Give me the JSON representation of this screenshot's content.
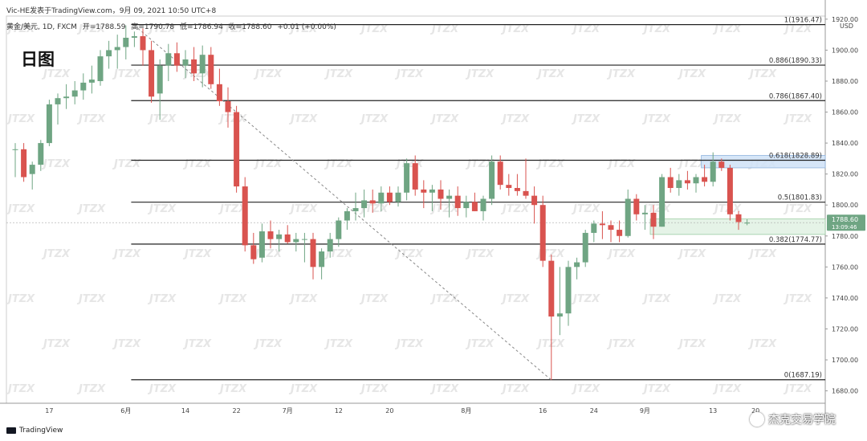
{
  "header": {
    "publisher_line": "Vic-HE发表于TradingView.com，9月 09, 2021 10:50 UTC+8",
    "symbol": "黄金/美元, 1D, FXCM",
    "open": "开=1788.59",
    "high": "高=1790.78",
    "low": "低=1786.94",
    "close": "收=1788.60",
    "change": "+0.01 (+0.00%)",
    "timeframe_title": "日图"
  },
  "footer": {
    "tradingview": "TradingView",
    "credit": "杰克交易学院",
    "watermark": "JTZX"
  },
  "colors": {
    "up": "#6fa583",
    "down": "#d9534f",
    "fib_line": "#222222",
    "trend_line": "#888888",
    "zone_blue": "#cfe2f7",
    "zone_green": "#e1f1e3",
    "price_badge": "#6fa583"
  },
  "chart_data": {
    "type": "candlestick",
    "ylabel_unit": "USD",
    "ylim": [
      1672,
      1922
    ],
    "y_ticks": [
      "1920.00",
      "1900.00",
      "1880.00",
      "1860.00",
      "1840.00",
      "1820.00",
      "1800.00",
      "1780.00",
      "1760.00",
      "1740.00",
      "1720.00",
      "1700.00",
      "1680.00"
    ],
    "y_tick_values": [
      1920,
      1900,
      1880,
      1860,
      1840,
      1820,
      1800,
      1780,
      1760,
      1740,
      1720,
      1700,
      1680
    ],
    "x_ticks": [
      {
        "label": "17",
        "index": 4
      },
      {
        "label": "6月",
        "index": 13
      },
      {
        "label": "14",
        "index": 20
      },
      {
        "label": "22",
        "index": 26
      },
      {
        "label": "7月",
        "index": 32
      },
      {
        "label": "12",
        "index": 38
      },
      {
        "label": "20",
        "index": 44
      },
      {
        "label": "8月",
        "index": 53
      },
      {
        "label": "16",
        "index": 62
      },
      {
        "label": "24",
        "index": 68
      },
      {
        "label": "9月",
        "index": 74
      },
      {
        "label": "13",
        "index": 82
      },
      {
        "label": "20",
        "index": 87
      }
    ],
    "candles": [
      {
        "o": 1836,
        "h": 1840,
        "l": 1818,
        "c": 1836
      },
      {
        "o": 1836,
        "h": 1840,
        "l": 1815,
        "c": 1818
      },
      {
        "o": 1820,
        "h": 1828,
        "l": 1810,
        "c": 1826
      },
      {
        "o": 1826,
        "h": 1842,
        "l": 1822,
        "c": 1840
      },
      {
        "o": 1840,
        "h": 1868,
        "l": 1838,
        "c": 1865
      },
      {
        "o": 1865,
        "h": 1872,
        "l": 1852,
        "c": 1869
      },
      {
        "o": 1869,
        "h": 1878,
        "l": 1862,
        "c": 1870
      },
      {
        "o": 1870,
        "h": 1880,
        "l": 1865,
        "c": 1874
      },
      {
        "o": 1874,
        "h": 1885,
        "l": 1868,
        "c": 1879
      },
      {
        "o": 1879,
        "h": 1890,
        "l": 1872,
        "c": 1881
      },
      {
        "o": 1880,
        "h": 1900,
        "l": 1877,
        "c": 1896
      },
      {
        "o": 1896,
        "h": 1906,
        "l": 1888,
        "c": 1900
      },
      {
        "o": 1900,
        "h": 1910,
        "l": 1888,
        "c": 1902
      },
      {
        "o": 1902,
        "h": 1916,
        "l": 1894,
        "c": 1908
      },
      {
        "o": 1908,
        "h": 1912,
        "l": 1902,
        "c": 1909
      },
      {
        "o": 1909,
        "h": 1914,
        "l": 1890,
        "c": 1900
      },
      {
        "o": 1900,
        "h": 1906,
        "l": 1866,
        "c": 1870
      },
      {
        "o": 1872,
        "h": 1894,
        "l": 1855,
        "c": 1890
      },
      {
        "o": 1890,
        "h": 1904,
        "l": 1880,
        "c": 1898
      },
      {
        "o": 1898,
        "h": 1905,
        "l": 1886,
        "c": 1890
      },
      {
        "o": 1890,
        "h": 1900,
        "l": 1882,
        "c": 1894
      },
      {
        "o": 1894,
        "h": 1902,
        "l": 1880,
        "c": 1885
      },
      {
        "o": 1885,
        "h": 1903,
        "l": 1876,
        "c": 1897
      },
      {
        "o": 1897,
        "h": 1902,
        "l": 1875,
        "c": 1878
      },
      {
        "o": 1878,
        "h": 1888,
        "l": 1864,
        "c": 1867
      },
      {
        "o": 1867,
        "h": 1876,
        "l": 1850,
        "c": 1860
      },
      {
        "o": 1860,
        "h": 1864,
        "l": 1808,
        "c": 1812
      },
      {
        "o": 1812,
        "h": 1818,
        "l": 1770,
        "c": 1774
      },
      {
        "o": 1774,
        "h": 1782,
        "l": 1762,
        "c": 1765
      },
      {
        "o": 1766,
        "h": 1788,
        "l": 1763,
        "c": 1783
      },
      {
        "o": 1783,
        "h": 1790,
        "l": 1772,
        "c": 1778
      },
      {
        "o": 1778,
        "h": 1784,
        "l": 1770,
        "c": 1781
      },
      {
        "o": 1781,
        "h": 1787,
        "l": 1775,
        "c": 1776
      },
      {
        "o": 1776,
        "h": 1782,
        "l": 1770,
        "c": 1778
      },
      {
        "o": 1778,
        "h": 1782,
        "l": 1763,
        "c": 1778
      },
      {
        "o": 1778,
        "h": 1782,
        "l": 1752,
        "c": 1760
      },
      {
        "o": 1760,
        "h": 1772,
        "l": 1752,
        "c": 1770
      },
      {
        "o": 1770,
        "h": 1782,
        "l": 1766,
        "c": 1778
      },
      {
        "o": 1778,
        "h": 1792,
        "l": 1773,
        "c": 1790
      },
      {
        "o": 1790,
        "h": 1798,
        "l": 1784,
        "c": 1796
      },
      {
        "o": 1796,
        "h": 1808,
        "l": 1790,
        "c": 1798
      },
      {
        "o": 1798,
        "h": 1810,
        "l": 1792,
        "c": 1803
      },
      {
        "o": 1803,
        "h": 1810,
        "l": 1795,
        "c": 1801
      },
      {
        "o": 1801,
        "h": 1812,
        "l": 1796,
        "c": 1808
      },
      {
        "o": 1808,
        "h": 1812,
        "l": 1800,
        "c": 1802
      },
      {
        "o": 1802,
        "h": 1812,
        "l": 1799,
        "c": 1808
      },
      {
        "o": 1808,
        "h": 1830,
        "l": 1803,
        "c": 1827
      },
      {
        "o": 1827,
        "h": 1832,
        "l": 1806,
        "c": 1810
      },
      {
        "o": 1810,
        "h": 1816,
        "l": 1798,
        "c": 1808
      },
      {
        "o": 1808,
        "h": 1813,
        "l": 1796,
        "c": 1810
      },
      {
        "o": 1810,
        "h": 1816,
        "l": 1797,
        "c": 1804
      },
      {
        "o": 1804,
        "h": 1810,
        "l": 1792,
        "c": 1806
      },
      {
        "o": 1806,
        "h": 1812,
        "l": 1793,
        "c": 1798
      },
      {
        "o": 1798,
        "h": 1806,
        "l": 1792,
        "c": 1802
      },
      {
        "o": 1802,
        "h": 1808,
        "l": 1796,
        "c": 1796
      },
      {
        "o": 1796,
        "h": 1806,
        "l": 1790,
        "c": 1804
      },
      {
        "o": 1804,
        "h": 1832,
        "l": 1800,
        "c": 1828
      },
      {
        "o": 1828,
        "h": 1832,
        "l": 1810,
        "c": 1813
      },
      {
        "o": 1813,
        "h": 1820,
        "l": 1806,
        "c": 1811
      },
      {
        "o": 1811,
        "h": 1820,
        "l": 1806,
        "c": 1809
      },
      {
        "o": 1809,
        "h": 1830,
        "l": 1804,
        "c": 1806
      },
      {
        "o": 1806,
        "h": 1812,
        "l": 1788,
        "c": 1800
      },
      {
        "o": 1800,
        "h": 1806,
        "l": 1760,
        "c": 1764
      },
      {
        "o": 1764,
        "h": 1768,
        "l": 1687,
        "c": 1728
      },
      {
        "o": 1728,
        "h": 1760,
        "l": 1716,
        "c": 1730
      },
      {
        "o": 1730,
        "h": 1764,
        "l": 1722,
        "c": 1760
      },
      {
        "o": 1760,
        "h": 1766,
        "l": 1752,
        "c": 1763
      },
      {
        "o": 1763,
        "h": 1784,
        "l": 1760,
        "c": 1782
      },
      {
        "o": 1782,
        "h": 1790,
        "l": 1776,
        "c": 1788
      },
      {
        "o": 1788,
        "h": 1796,
        "l": 1778,
        "c": 1787
      },
      {
        "o": 1787,
        "h": 1790,
        "l": 1776,
        "c": 1784
      },
      {
        "o": 1784,
        "h": 1790,
        "l": 1776,
        "c": 1780
      },
      {
        "o": 1780,
        "h": 1810,
        "l": 1779,
        "c": 1804
      },
      {
        "o": 1804,
        "h": 1807,
        "l": 1790,
        "c": 1794
      },
      {
        "o": 1794,
        "h": 1800,
        "l": 1784,
        "c": 1795
      },
      {
        "o": 1795,
        "h": 1800,
        "l": 1778,
        "c": 1786
      },
      {
        "o": 1786,
        "h": 1820,
        "l": 1786,
        "c": 1818
      },
      {
        "o": 1818,
        "h": 1824,
        "l": 1808,
        "c": 1811
      },
      {
        "o": 1811,
        "h": 1820,
        "l": 1806,
        "c": 1816
      },
      {
        "o": 1816,
        "h": 1822,
        "l": 1810,
        "c": 1814
      },
      {
        "o": 1814,
        "h": 1820,
        "l": 1808,
        "c": 1818
      },
      {
        "o": 1818,
        "h": 1826,
        "l": 1812,
        "c": 1815
      },
      {
        "o": 1815,
        "h": 1834,
        "l": 1812,
        "c": 1828
      },
      {
        "o": 1828,
        "h": 1830,
        "l": 1822,
        "c": 1824
      },
      {
        "o": 1824,
        "h": 1826,
        "l": 1790,
        "c": 1794
      },
      {
        "o": 1794,
        "h": 1796,
        "l": 1784,
        "c": 1789
      },
      {
        "o": 1788.59,
        "h": 1790.78,
        "l": 1786.94,
        "c": 1788.6
      }
    ],
    "fib_levels": [
      {
        "label": "1(1916.47)",
        "value": 1916.47
      },
      {
        "label": "0.886(1890.33)",
        "value": 1890.33
      },
      {
        "label": "0.786(1867.40)",
        "value": 1867.4
      },
      {
        "label": "0.618(1828.89)",
        "value": 1828.89
      },
      {
        "label": "0.5(1801.83)",
        "value": 1801.83
      },
      {
        "label": "0.382(1774.77)",
        "value": 1774.77
      },
      {
        "label": "0(1687.19)",
        "value": 1687.19
      }
    ],
    "trend_line": {
      "from_index": 14,
      "from_price": 1916,
      "to_index": 63,
      "to_price": 1687
    },
    "zones": [
      {
        "name": "resistance-zone",
        "from_index": 81,
        "from_price": 1832,
        "to_price": 1824
      },
      {
        "name": "support-zone",
        "from_index": 75,
        "from_price": 1791,
        "to_price": 1781
      }
    ],
    "last_price": {
      "value": "1788.60",
      "countdown": "13:09:46"
    }
  }
}
